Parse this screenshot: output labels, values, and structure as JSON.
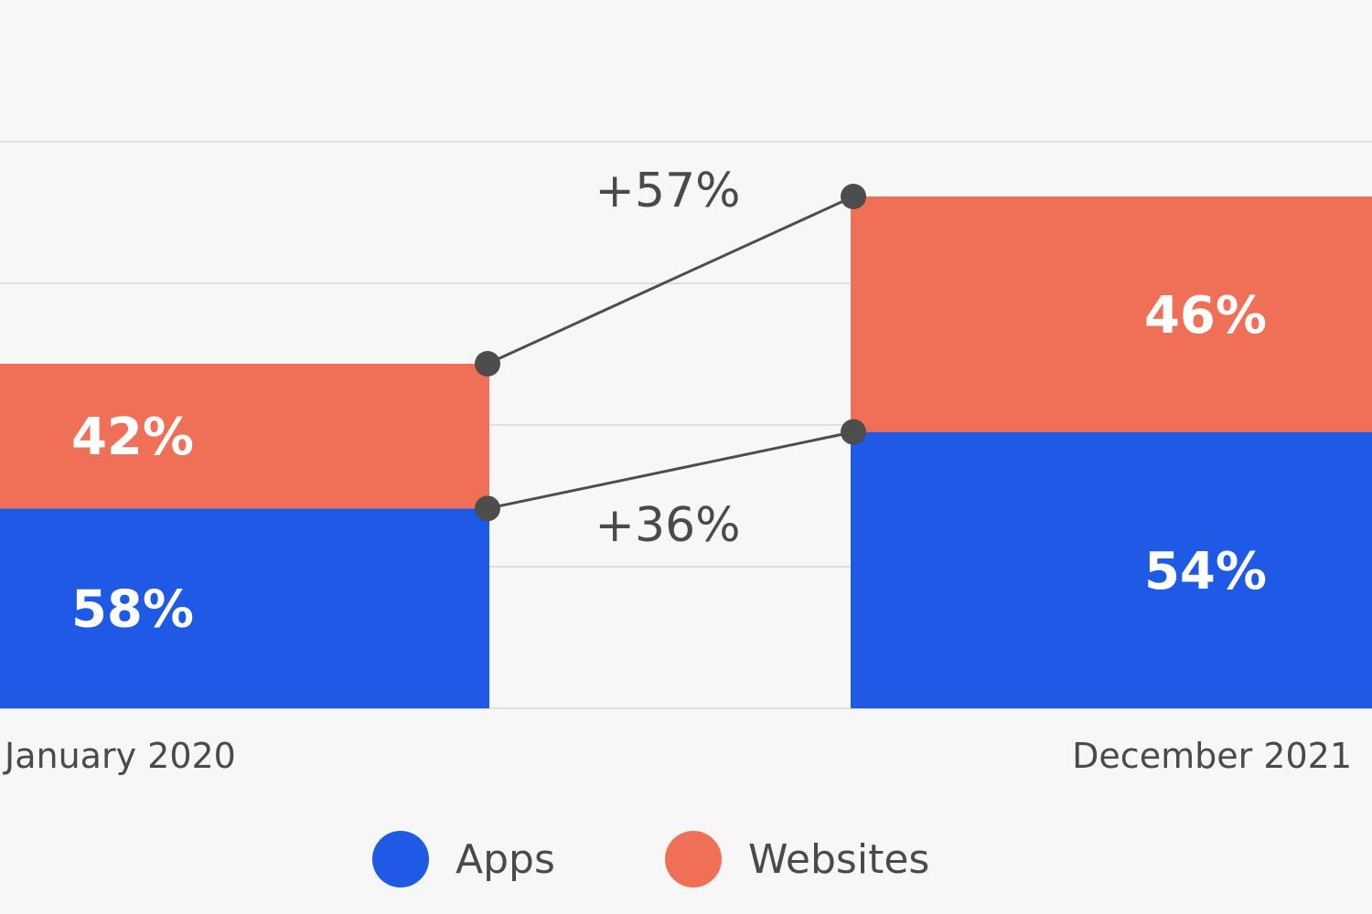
{
  "chart_data": {
    "type": "bar",
    "stacked": true,
    "categories": [
      "January 2020",
      "December 2021"
    ],
    "series": [
      {
        "name": "Apps",
        "values": [
          58,
          54
        ],
        "labels": [
          "58%",
          "54%"
        ],
        "color": "#1f5ae6"
      },
      {
        "name": "Websites",
        "values": [
          42,
          46
        ],
        "labels": [
          "42%",
          "46%"
        ],
        "color": "#f07057"
      }
    ],
    "changes": [
      {
        "series": "Websites",
        "label": "+57%"
      },
      {
        "series": "Apps",
        "label": "+36%"
      }
    ],
    "grid": true,
    "legend": "bottom-center"
  }
}
